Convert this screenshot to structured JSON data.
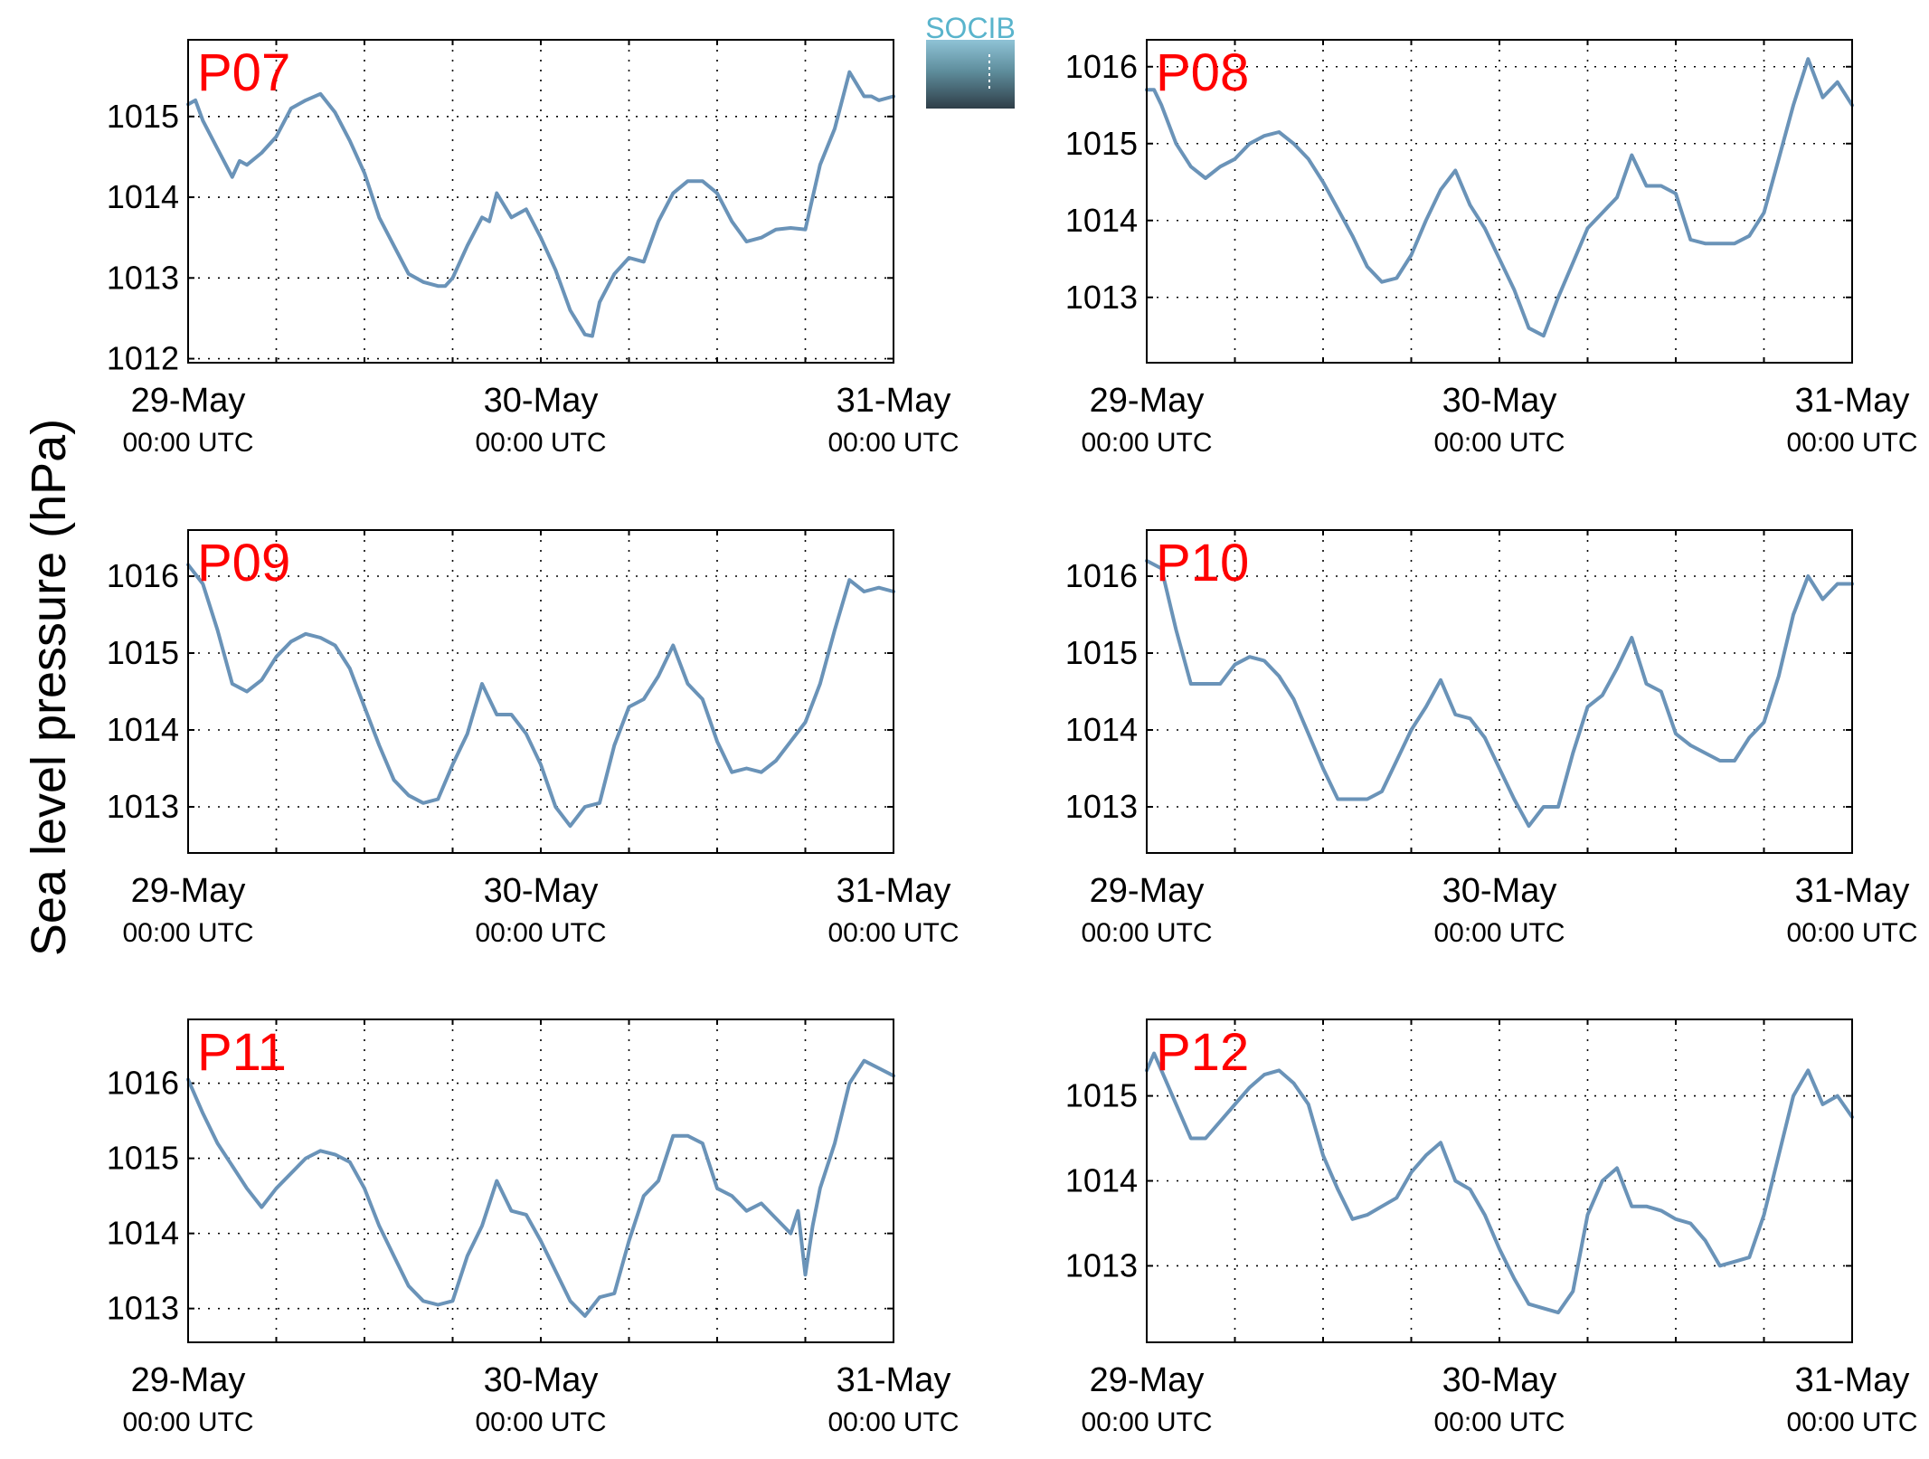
{
  "figure": {
    "ylabel": "Sea level pressure (hPa)",
    "logo_text": "SOCIB",
    "series_color": "#6a93b8",
    "label_color": "#ff0000"
  },
  "chart_data": [
    {
      "type": "line",
      "label": "P07",
      "x_ticks": [
        {
          "date": "29-May",
          "time": "00:00 UTC"
        },
        {
          "date": "30-May",
          "time": "00:00 UTC"
        },
        {
          "date": "31-May",
          "time": "00:00 UTC"
        }
      ],
      "xlim": [
        0,
        48
      ],
      "ylim": [
        1011.95,
        1015.95
      ],
      "yticks": [
        1012,
        1013,
        1014,
        1015
      ],
      "grid": true,
      "x_hours": [
        0,
        0.5,
        1,
        2,
        3,
        3.5,
        4,
        5,
        6,
        7,
        8,
        9,
        10,
        11,
        12,
        13,
        14,
        15,
        16,
        17,
        17.5,
        18,
        19,
        20,
        20.5,
        21,
        22,
        23,
        24,
        25,
        26,
        27,
        27.5,
        28,
        29,
        30,
        31,
        32,
        33,
        34,
        35,
        36,
        37,
        38,
        39,
        40,
        41,
        42,
        43,
        44,
        45,
        46,
        46.5,
        47,
        48
      ],
      "values": [
        1015.15,
        1015.2,
        1014.95,
        1014.6,
        1014.25,
        1014.45,
        1014.4,
        1014.55,
        1014.75,
        1015.1,
        1015.2,
        1015.28,
        1015.05,
        1014.7,
        1014.3,
        1013.75,
        1013.4,
        1013.05,
        1012.95,
        1012.9,
        1012.9,
        1013.0,
        1013.4,
        1013.75,
        1013.7,
        1014.05,
        1013.75,
        1013.85,
        1013.5,
        1013.1,
        1012.6,
        1012.3,
        1012.28,
        1012.7,
        1013.05,
        1013.25,
        1013.2,
        1013.7,
        1014.05,
        1014.2,
        1014.2,
        1014.05,
        1013.7,
        1013.45,
        1013.5,
        1013.6,
        1013.62,
        1013.6,
        1014.4,
        1014.85,
        1015.55,
        1015.25,
        1015.25,
        1015.2,
        1015.25
      ]
    },
    {
      "type": "line",
      "label": "P08",
      "x_ticks": [
        {
          "date": "29-May",
          "time": "00:00 UTC"
        },
        {
          "date": "30-May",
          "time": "00:00 UTC"
        },
        {
          "date": "31-May",
          "time": "00:00 UTC"
        }
      ],
      "xlim": [
        0,
        48
      ],
      "ylim": [
        1012.15,
        1016.35
      ],
      "yticks": [
        1013,
        1014,
        1015,
        1016
      ],
      "grid": true,
      "x_hours": [
        0,
        0.5,
        1,
        2,
        3,
        4,
        5,
        6,
        7,
        8,
        9,
        10,
        11,
        12,
        13,
        14,
        15,
        16,
        17,
        18,
        19,
        20,
        21,
        22,
        23,
        24,
        25,
        26,
        27,
        28,
        29,
        30,
        31,
        32,
        33,
        34,
        35,
        36,
        37,
        38,
        39,
        40,
        41,
        42,
        43,
        44,
        45,
        46,
        47,
        48
      ],
      "values": [
        1015.7,
        1015.7,
        1015.5,
        1015.0,
        1014.7,
        1014.55,
        1014.7,
        1014.8,
        1015.0,
        1015.1,
        1015.15,
        1015.0,
        1014.8,
        1014.5,
        1014.15,
        1013.8,
        1013.4,
        1013.2,
        1013.25,
        1013.55,
        1014.0,
        1014.4,
        1014.65,
        1014.2,
        1013.9,
        1013.5,
        1013.1,
        1012.6,
        1012.5,
        1013.0,
        1013.45,
        1013.9,
        1014.1,
        1014.3,
        1014.85,
        1014.45,
        1014.45,
        1014.35,
        1013.75,
        1013.7,
        1013.7,
        1013.7,
        1013.8,
        1014.1,
        1014.8,
        1015.5,
        1016.1,
        1015.6,
        1015.8,
        1015.5
      ]
    },
    {
      "type": "line",
      "label": "P09",
      "x_ticks": [
        {
          "date": "29-May",
          "time": "00:00 UTC"
        },
        {
          "date": "30-May",
          "time": "00:00 UTC"
        },
        {
          "date": "31-May",
          "time": "00:00 UTC"
        }
      ],
      "xlim": [
        0,
        48
      ],
      "ylim": [
        1012.4,
        1016.6
      ],
      "yticks": [
        1013,
        1014,
        1015,
        1016
      ],
      "grid": true,
      "x_hours": [
        0,
        1,
        2,
        3,
        4,
        5,
        6,
        7,
        8,
        9,
        10,
        11,
        12,
        13,
        14,
        15,
        16,
        17,
        18,
        19,
        20,
        21,
        22,
        23,
        24,
        25,
        26,
        27,
        28,
        29,
        30,
        31,
        32,
        33,
        34,
        35,
        36,
        37,
        38,
        39,
        40,
        41,
        42,
        43,
        44,
        45,
        46,
        47,
        48
      ],
      "values": [
        1016.15,
        1015.9,
        1015.3,
        1014.6,
        1014.5,
        1014.65,
        1014.95,
        1015.15,
        1015.25,
        1015.2,
        1015.1,
        1014.8,
        1014.3,
        1013.8,
        1013.35,
        1013.15,
        1013.05,
        1013.1,
        1013.55,
        1013.95,
        1014.6,
        1014.2,
        1014.2,
        1013.95,
        1013.55,
        1013.0,
        1012.75,
        1013.0,
        1013.05,
        1013.8,
        1014.3,
        1014.4,
        1014.7,
        1015.1,
        1014.6,
        1014.4,
        1013.85,
        1013.45,
        1013.5,
        1013.45,
        1013.6,
        1013.85,
        1014.1,
        1014.6,
        1015.3,
        1015.95,
        1015.8,
        1015.85,
        1015.8
      ]
    },
    {
      "type": "line",
      "label": "P10",
      "x_ticks": [
        {
          "date": "29-May",
          "time": "00:00 UTC"
        },
        {
          "date": "30-May",
          "time": "00:00 UTC"
        },
        {
          "date": "31-May",
          "time": "00:00 UTC"
        }
      ],
      "xlim": [
        0,
        48
      ],
      "ylim": [
        1012.4,
        1016.6
      ],
      "yticks": [
        1013,
        1014,
        1015,
        1016
      ],
      "grid": true,
      "x_hours": [
        0,
        1,
        2,
        3,
        4,
        5,
        6,
        7,
        8,
        9,
        10,
        11,
        12,
        13,
        14,
        15,
        16,
        17,
        18,
        19,
        20,
        21,
        22,
        23,
        24,
        25,
        26,
        27,
        28,
        29,
        30,
        31,
        32,
        33,
        34,
        35,
        36,
        37,
        38,
        39,
        40,
        41,
        42,
        43,
        44,
        45,
        46,
        47,
        48
      ],
      "values": [
        1016.2,
        1016.1,
        1015.3,
        1014.6,
        1014.6,
        1014.6,
        1014.85,
        1014.95,
        1014.9,
        1014.7,
        1014.4,
        1013.95,
        1013.5,
        1013.1,
        1013.1,
        1013.1,
        1013.2,
        1013.6,
        1014.0,
        1014.3,
        1014.65,
        1014.2,
        1014.15,
        1013.9,
        1013.5,
        1013.1,
        1012.75,
        1013.0,
        1013.0,
        1013.7,
        1014.3,
        1014.45,
        1014.8,
        1015.2,
        1014.6,
        1014.5,
        1013.95,
        1013.8,
        1013.7,
        1013.6,
        1013.6,
        1013.9,
        1014.1,
        1014.7,
        1015.5,
        1016.0,
        1015.7,
        1015.9,
        1015.9
      ]
    },
    {
      "type": "line",
      "label": "P11",
      "x_ticks": [
        {
          "date": "29-May",
          "time": "00:00 UTC"
        },
        {
          "date": "30-May",
          "time": "00:00 UTC"
        },
        {
          "date": "31-May",
          "time": "00:00 UTC"
        }
      ],
      "xlim": [
        0,
        48
      ],
      "ylim": [
        1012.55,
        1016.85
      ],
      "yticks": [
        1013,
        1014,
        1015,
        1016
      ],
      "grid": true,
      "x_hours": [
        0,
        1,
        2,
        3,
        4,
        5,
        6,
        7,
        8,
        9,
        10,
        11,
        12,
        13,
        14,
        15,
        16,
        17,
        18,
        19,
        20,
        21,
        22,
        23,
        24,
        25,
        26,
        27,
        28,
        29,
        30,
        31,
        32,
        33,
        34,
        35,
        36,
        37,
        38,
        39,
        40,
        41,
        41.5,
        42,
        42.5,
        43,
        44,
        45,
        46,
        47,
        48
      ],
      "values": [
        1016.05,
        1015.6,
        1015.2,
        1014.9,
        1014.6,
        1014.35,
        1014.6,
        1014.8,
        1015.0,
        1015.1,
        1015.05,
        1014.95,
        1014.6,
        1014.1,
        1013.7,
        1013.3,
        1013.1,
        1013.05,
        1013.1,
        1013.7,
        1014.1,
        1014.7,
        1014.3,
        1014.25,
        1013.9,
        1013.5,
        1013.1,
        1012.9,
        1013.15,
        1013.2,
        1013.9,
        1014.5,
        1014.7,
        1015.3,
        1015.3,
        1015.2,
        1014.6,
        1014.5,
        1014.3,
        1014.4,
        1014.2,
        1014.0,
        1014.3,
        1013.45,
        1014.1,
        1014.6,
        1015.2,
        1016.0,
        1016.3,
        1016.2,
        1016.1
      ]
    },
    {
      "type": "line",
      "label": "P12",
      "x_ticks": [
        {
          "date": "29-May",
          "time": "00:00 UTC"
        },
        {
          "date": "30-May",
          "time": "00:00 UTC"
        },
        {
          "date": "31-May",
          "time": "00:00 UTC"
        }
      ],
      "xlim": [
        0,
        48
      ],
      "ylim": [
        1012.1,
        1015.9
      ],
      "yticks": [
        1013,
        1014,
        1015
      ],
      "grid": true,
      "x_hours": [
        0,
        0.5,
        1,
        2,
        3,
        4,
        5,
        6,
        7,
        8,
        9,
        10,
        11,
        12,
        13,
        14,
        15,
        16,
        17,
        18,
        19,
        20,
        21,
        22,
        23,
        24,
        25,
        26,
        27,
        28,
        29,
        30,
        31,
        32,
        33,
        34,
        35,
        36,
        37,
        38,
        39,
        40,
        41,
        42,
        43,
        44,
        45,
        46,
        47,
        48
      ],
      "values": [
        1015.3,
        1015.5,
        1015.3,
        1014.9,
        1014.5,
        1014.5,
        1014.7,
        1014.9,
        1015.1,
        1015.25,
        1015.3,
        1015.15,
        1014.9,
        1014.3,
        1013.9,
        1013.55,
        1013.6,
        1013.7,
        1013.8,
        1014.1,
        1014.3,
        1014.45,
        1014.0,
        1013.9,
        1013.6,
        1013.2,
        1012.85,
        1012.55,
        1012.5,
        1012.45,
        1012.7,
        1013.6,
        1014.0,
        1014.15,
        1013.7,
        1013.7,
        1013.65,
        1013.55,
        1013.5,
        1013.3,
        1013.0,
        1013.05,
        1013.1,
        1013.6,
        1014.3,
        1015.0,
        1015.3,
        1014.9,
        1015.0,
        1014.75
      ]
    }
  ]
}
